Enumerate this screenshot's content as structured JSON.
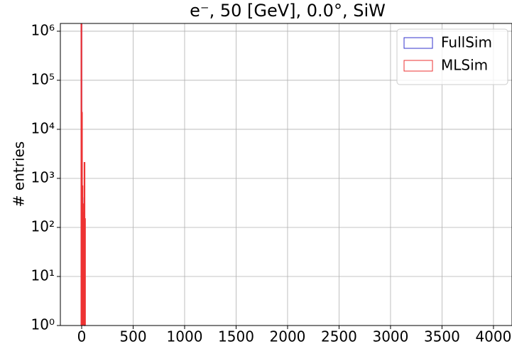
{
  "chart_data": {
    "type": "histogram",
    "title": "e⁻, 50 [GeV], 0.0°, SiW",
    "y_label": "# entries",
    "bins": [
      -5,
      0,
      5,
      10,
      15,
      20,
      25,
      30,
      35
    ],
    "series": [
      {
        "name": "FullSim",
        "color": "#3333cc",
        "values": [
          1400000,
          22000,
          400,
          55,
          2,
          2,
          1,
          0
        ]
      },
      {
        "name": "MLSim",
        "color": "#ee3333",
        "values": [
          1400000,
          22000,
          700,
          300,
          150,
          200,
          2100,
          150
        ]
      }
    ],
    "xlim": [
      -207,
      4180
    ],
    "xticks": [
      0,
      500,
      1000,
      1500,
      2000,
      2500,
      3000,
      3500,
      4000
    ],
    "ylim": [
      1,
      1440000
    ],
    "y_log": true,
    "yticks": [
      {
        "value": 1,
        "label": "10⁰"
      },
      {
        "value": 10,
        "label": "10¹"
      },
      {
        "value": 100,
        "label": "10²"
      },
      {
        "value": 1000,
        "label": "10³"
      },
      {
        "value": 10000,
        "label": "10⁴"
      },
      {
        "value": 100000,
        "label": "10⁵"
      },
      {
        "value": 1000000,
        "label": "10⁶"
      }
    ],
    "grid": true,
    "legend": "upper right"
  }
}
